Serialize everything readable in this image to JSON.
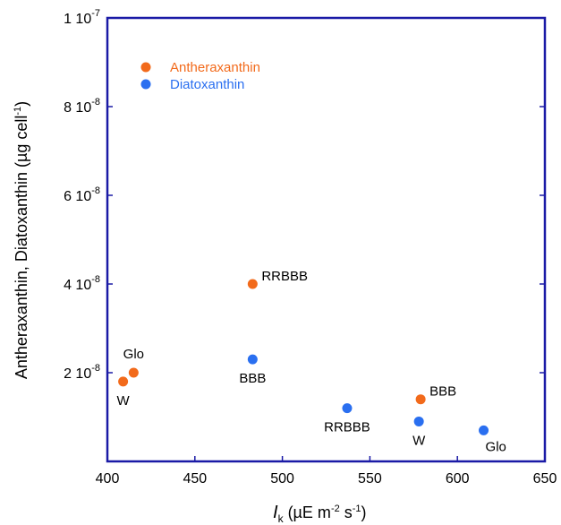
{
  "colors": {
    "axis": "#1a1aa6",
    "antheraxanthin": "#f26a1b",
    "diatoxanthin": "#2a6ff0"
  },
  "chart_data": {
    "type": "scatter",
    "title": "",
    "xlabel": "I_k (µE m^-2 s^-1)",
    "ylabel": "Antheraxanthin, Diatoxanthin (µg cell^-1)",
    "xlim": [
      400,
      650
    ],
    "ylim": [
      0,
      1e-07
    ],
    "grid": false,
    "legend_position": "top-left",
    "xticks": [
      400,
      450,
      500,
      550,
      600,
      650
    ],
    "xtick_labels": [
      "400",
      "450",
      "500",
      "550",
      "600",
      "650"
    ],
    "yticks": [
      2e-08,
      4e-08,
      6e-08,
      8e-08,
      1e-07
    ],
    "ytick_labels": [
      {
        "mantissa": "2 10",
        "exponent": "-8"
      },
      {
        "mantissa": "4 10",
        "exponent": "-8"
      },
      {
        "mantissa": "6 10",
        "exponent": "-8"
      },
      {
        "mantissa": "8 10",
        "exponent": "-8"
      },
      {
        "mantissa": "1 10",
        "exponent": "-7"
      }
    ],
    "series": [
      {
        "name": "Antheraxanthin",
        "color": "#f26a1b",
        "points": [
          {
            "x": 409,
            "y": 1.8e-08,
            "label": "W",
            "label_pos": "below"
          },
          {
            "x": 415,
            "y": 2e-08,
            "label": "Glo",
            "label_pos": "above"
          },
          {
            "x": 483,
            "y": 4e-08,
            "label": "RRBBB",
            "label_pos": "right"
          },
          {
            "x": 579,
            "y": 1.4e-08,
            "label": "BBB",
            "label_pos": "right"
          }
        ]
      },
      {
        "name": "Diatoxanthin",
        "color": "#2a6ff0",
        "points": [
          {
            "x": 483,
            "y": 2.3e-08,
            "label": "BBB",
            "label_pos": "below"
          },
          {
            "x": 537,
            "y": 1.2e-08,
            "label": "RRBBB",
            "label_pos": "below"
          },
          {
            "x": 578,
            "y": 9e-09,
            "label": "W",
            "label_pos": "below"
          },
          {
            "x": 615,
            "y": 7e-09,
            "label": "Glo",
            "label_pos": "below-right"
          }
        ]
      }
    ]
  }
}
